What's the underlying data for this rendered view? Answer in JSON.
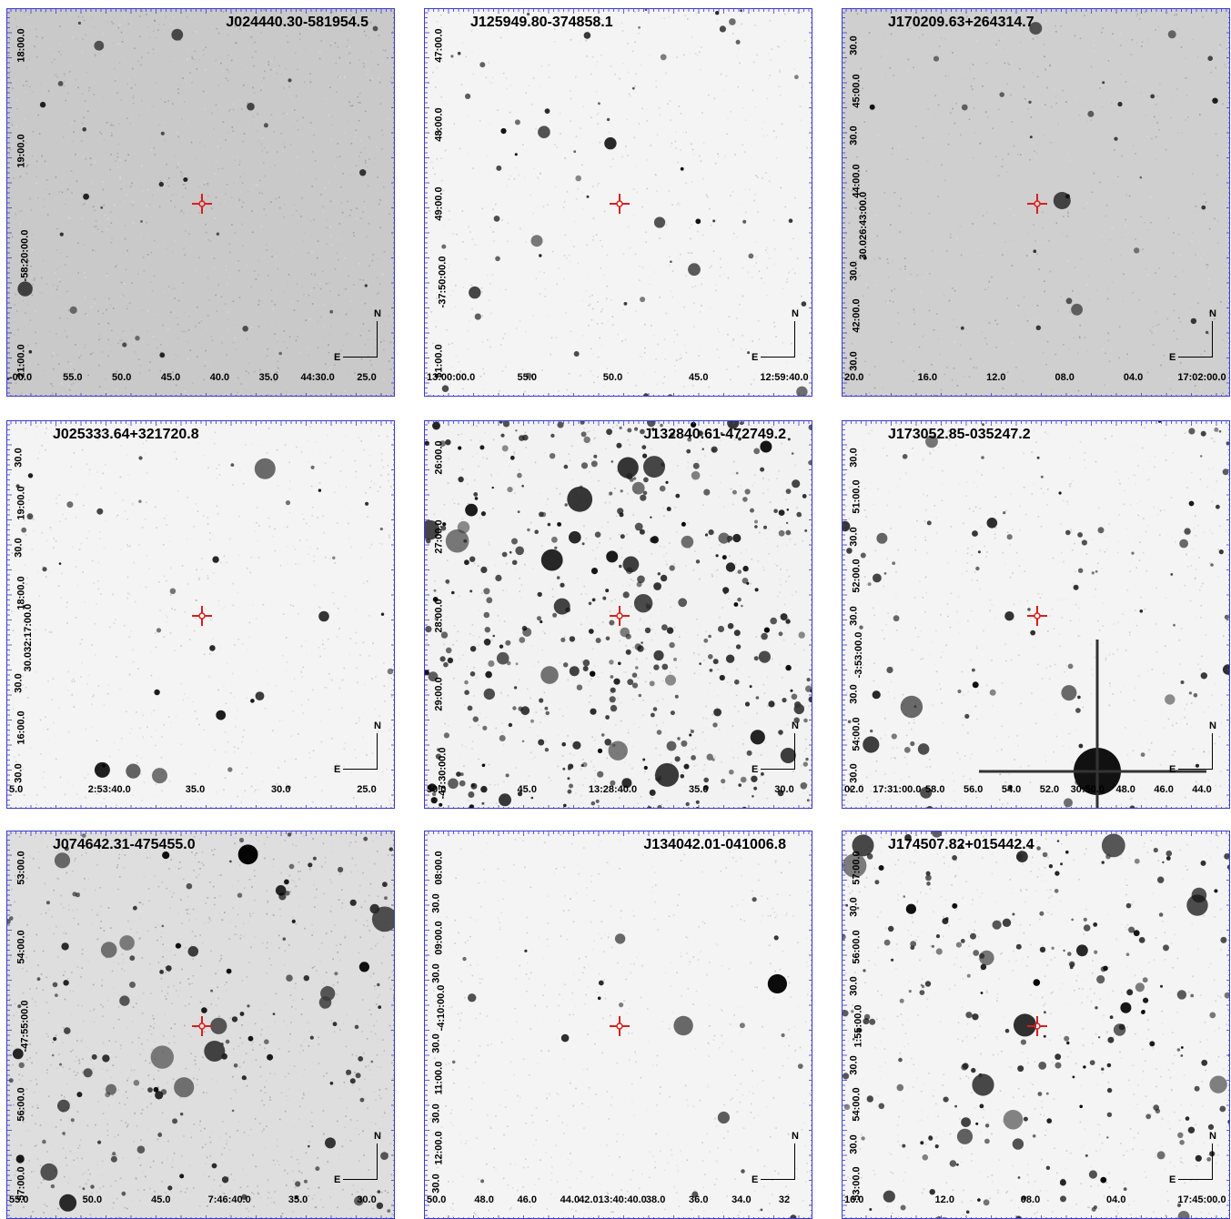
{
  "panels": [
    {
      "title": "J024440.30-581954.5",
      "title_align": "right",
      "tone": "mottled",
      "density": 30,
      "xticks": [
        "-00.0",
        "55.0",
        "50.0",
        "45.0",
        "40.0",
        "35.0",
        "44:30.0",
        "25.0"
      ],
      "yticks": [
        "18:00.0",
        "19:00.0",
        "-58:20:00.0",
        "21:00.0"
      ],
      "compass_n": "N",
      "compass_e": "E"
    },
    {
      "title": "J125949.80-374858.1",
      "title_align": "left",
      "tone": "light",
      "density": 55,
      "xticks": [
        "13:00:00.0",
        "55.0",
        "50.0",
        "45.0",
        "12:59:40.0"
      ],
      "yticks": [
        "47:00.0",
        "48:00.0",
        "49:00.0",
        "-37:50:00.0",
        "51:00.0"
      ],
      "compass_n": "N",
      "compass_e": "E"
    },
    {
      "title": "J170209.63+264314.7",
      "title_align": "left",
      "tone": "grey",
      "density": 28,
      "xticks": [
        "20.0",
        "16.0",
        "12.0",
        "08.0",
        "04.0",
        "17:02:00.0"
      ],
      "yticks": [
        "30.0",
        "45:00.0",
        "30.0",
        "44:00.0",
        "30.026:43:00.0",
        "30.0",
        "42:00.0",
        "30.0"
      ],
      "compass_n": "N",
      "compass_e": "E"
    },
    {
      "title": "J025333.64+321720.8",
      "title_align": "left",
      "tone": "light",
      "density": 35,
      "xticks": [
        "5.0",
        "2:53:40.0",
        "35.0",
        "30.0",
        "25.0"
      ],
      "yticks": [
        "30.0",
        "19:00.0",
        "30.0",
        "18:00.0",
        "30.032:17:00.0",
        "30.0",
        "16:00.0",
        "30.0"
      ],
      "compass_n": "N",
      "compass_e": "E"
    },
    {
      "title": "J132840.61-472749.2",
      "title_align": "right",
      "tone": "crowded",
      "density": 420,
      "xticks": [
        "50.0",
        "45.0",
        "13:28:40.0",
        "35.0",
        "30.0"
      ],
      "yticks": [
        "26:00.0",
        "27:00.0",
        "28:00.0",
        "29:00.0",
        "-47:30:00.0"
      ],
      "compass_n": "N",
      "compass_e": "E"
    },
    {
      "title": "J173052.85-035247.2",
      "title_align": "left",
      "tone": "light",
      "density": 90,
      "xticks": [
        "02.0",
        "17:31:00.0",
        "58.0",
        "56.0",
        "54.0",
        "52.0",
        "30:50.0",
        "48.0",
        "46.0",
        "44.0"
      ],
      "yticks": [
        "30.0",
        "51:00.0",
        "30.0",
        "52:00.0",
        "30.0",
        "-3:53:00.0",
        "30.0",
        "54:00.0",
        "30.0"
      ],
      "compass_n": "N",
      "compass_e": "E"
    },
    {
      "title": "J074642.31-475455.0",
      "title_align": "left",
      "tone": "mottled-light",
      "density": 140,
      "xticks": [
        "55.0",
        "50.0",
        "45.0",
        "7:46:40.0",
        "35.0",
        "30.0"
      ],
      "yticks": [
        "53:00.0",
        "54:00.0",
        "-47:55:00.0",
        "56:00.0",
        "57:00.0"
      ],
      "compass_n": "N",
      "compass_e": "E"
    },
    {
      "title": "J134042.01-041006.8",
      "title_align": "right",
      "tone": "light",
      "density": 22,
      "xticks": [
        "50.0",
        "48.0",
        "46.0",
        "44.0",
        "42.013:40:40.0",
        "38.0",
        "36.0",
        "34.0",
        "32"
      ],
      "yticks": [
        "08:00.0",
        "30.0",
        "09:00.0",
        "30.0",
        "-4:10:00.0",
        "30.0",
        "11:00.0",
        "30.0",
        "12:00.0",
        "30.0"
      ],
      "compass_n": "N",
      "compass_e": "E"
    },
    {
      "title": "J174507.82+015442.4",
      "title_align": "left",
      "tone": "light",
      "density": 230,
      "xticks": [
        "16.0",
        "12.0",
        "08.0",
        "04.0",
        "17:45:00.0"
      ],
      "yticks": [
        "57:00.0",
        "30.0",
        "56:00.0",
        "30.0",
        "1:55:00.0",
        "30.0",
        "54:00.0",
        "30.0",
        "53:00.0"
      ],
      "compass_n": "N",
      "compass_e": "E"
    }
  ],
  "marker_color": "#d81e1e"
}
